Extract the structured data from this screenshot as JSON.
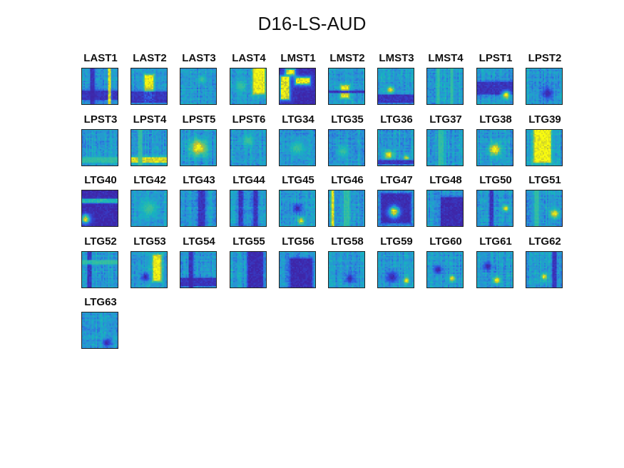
{
  "figure": {
    "title": "D16-LS-AUD"
  },
  "colormap": {
    "name": "parula",
    "stops": [
      "#3e26a8",
      "#2f52e0",
      "#2a8fd6",
      "#16b4be",
      "#4cc48a",
      "#b8bd3a",
      "#f9fb0e"
    ],
    "background_level": 0.38
  },
  "chart_data": {
    "type": "heatmap",
    "layout": "small multiples",
    "panels": [
      {
        "label": "LAST1",
        "blobs": [
          {
            "c": "dark",
            "kind": "vband",
            "x": 0.3,
            "w": 0.12
          },
          {
            "c": "dark",
            "kind": "hband",
            "y": 0.75,
            "w": 0.25
          },
          {
            "c": "bright",
            "kind": "vband",
            "x": 0.78,
            "w": 0.06
          }
        ]
      },
      {
        "label": "LAST2",
        "blobs": [
          {
            "c": "bright",
            "kind": "rect",
            "x": 0.5,
            "y": 0.55,
            "w": 0.22,
            "h": 0.7
          },
          {
            "c": "dark",
            "kind": "hband",
            "y": 0.8,
            "w": 0.3
          }
        ]
      },
      {
        "label": "LAST3",
        "blobs": [
          {
            "c": "mid",
            "kind": "spot",
            "x": 0.6,
            "y": 0.3,
            "r": 0.15
          }
        ]
      },
      {
        "label": "LAST4",
        "blobs": [
          {
            "c": "bright",
            "kind": "rect",
            "x": 0.8,
            "y": 0.35,
            "w": 0.3,
            "h": 0.7
          },
          {
            "c": "mid",
            "kind": "spot",
            "x": 0.3,
            "y": 0.5,
            "r": 0.2
          }
        ]
      },
      {
        "label": "LMST1",
        "blobs": [
          {
            "c": "dark",
            "kind": "rect",
            "x": 0.5,
            "y": 0.5,
            "w": 1,
            "h": 1
          },
          {
            "c": "bright",
            "kind": "rect",
            "x": 0.15,
            "y": 0.55,
            "w": 0.2,
            "h": 0.6
          },
          {
            "c": "bright",
            "kind": "rect",
            "x": 0.65,
            "y": 0.35,
            "w": 0.35,
            "h": 0.15
          },
          {
            "c": "bright",
            "kind": "rect",
            "x": 0.3,
            "y": 0.1,
            "w": 0.2,
            "h": 0.12
          }
        ]
      },
      {
        "label": "LMST2",
        "blobs": [
          {
            "c": "bright",
            "kind": "rect",
            "x": 0.45,
            "y": 0.55,
            "w": 0.2,
            "h": 0.12
          },
          {
            "c": "bright",
            "kind": "rect",
            "x": 0.45,
            "y": 0.75,
            "w": 0.2,
            "h": 0.1
          },
          {
            "c": "dark",
            "kind": "hband",
            "y": 0.65,
            "w": 0.08
          }
        ]
      },
      {
        "label": "LMST3",
        "blobs": [
          {
            "c": "bright",
            "kind": "spot",
            "x": 0.35,
            "y": 0.6,
            "r": 0.12
          },
          {
            "c": "dark",
            "kind": "hband",
            "y": 0.85,
            "w": 0.2
          }
        ]
      },
      {
        "label": "LMST4",
        "blobs": [
          {
            "c": "mid",
            "kind": "vband",
            "x": 0.3,
            "w": 0.08
          },
          {
            "c": "mid",
            "kind": "vband",
            "x": 0.7,
            "w": 0.08
          }
        ]
      },
      {
        "label": "LPST1",
        "blobs": [
          {
            "c": "dark",
            "kind": "hband",
            "y": 0.55,
            "w": 0.35
          },
          {
            "c": "bright",
            "kind": "spot",
            "x": 0.82,
            "y": 0.75,
            "r": 0.14
          }
        ]
      },
      {
        "label": "LPST2",
        "blobs": [
          {
            "c": "dark",
            "kind": "spot",
            "x": 0.6,
            "y": 0.7,
            "r": 0.2
          }
        ]
      },
      {
        "label": "LPST3",
        "blobs": [
          {
            "c": "mid",
            "kind": "hband",
            "y": 0.85,
            "w": 0.15
          }
        ]
      },
      {
        "label": "LPST4",
        "blobs": [
          {
            "c": "bright",
            "kind": "hband",
            "y": 0.85,
            "w": 0.15
          },
          {
            "c": "mid",
            "kind": "vband",
            "x": 0.25,
            "w": 0.1
          }
        ]
      },
      {
        "label": "LPST5",
        "blobs": [
          {
            "c": "bright",
            "kind": "spot",
            "x": 0.5,
            "y": 0.5,
            "r": 0.28
          }
        ]
      },
      {
        "label": "LPST6",
        "blobs": [
          {
            "c": "mid",
            "kind": "spot",
            "x": 0.5,
            "y": 0.3,
            "r": 0.2
          }
        ]
      },
      {
        "label": "LTG34",
        "blobs": [
          {
            "c": "mid",
            "kind": "spot",
            "x": 0.5,
            "y": 0.5,
            "r": 0.25
          }
        ]
      },
      {
        "label": "LTG35",
        "blobs": [
          {
            "c": "mid",
            "kind": "spot",
            "x": 0.4,
            "y": 0.6,
            "r": 0.2
          }
        ]
      },
      {
        "label": "LTG36",
        "blobs": [
          {
            "c": "bright",
            "kind": "spot",
            "x": 0.3,
            "y": 0.7,
            "r": 0.15
          },
          {
            "c": "bright",
            "kind": "spot",
            "x": 0.8,
            "y": 0.8,
            "r": 0.1
          },
          {
            "c": "dark",
            "kind": "hband",
            "y": 0.9,
            "w": 0.12
          }
        ]
      },
      {
        "label": "LTG37",
        "blobs": [
          {
            "c": "mid",
            "kind": "vband",
            "x": 0.4,
            "w": 0.15
          }
        ]
      },
      {
        "label": "LTG38",
        "blobs": [
          {
            "c": "bright",
            "kind": "spot",
            "x": 0.5,
            "y": 0.55,
            "r": 0.22
          }
        ]
      },
      {
        "label": "LTG39",
        "blobs": [
          {
            "c": "bright",
            "kind": "rect",
            "x": 0.45,
            "y": 0.45,
            "w": 0.45,
            "h": 0.9
          }
        ]
      },
      {
        "label": "LTG40",
        "blobs": [
          {
            "c": "dark",
            "kind": "rect",
            "x": 0.5,
            "y": 0.5,
            "w": 1,
            "h": 1
          },
          {
            "c": "mid",
            "kind": "hband",
            "y": 0.3,
            "w": 0.1
          },
          {
            "c": "bright",
            "kind": "spot",
            "x": 0.1,
            "y": 0.8,
            "r": 0.15
          }
        ]
      },
      {
        "label": "LTG42",
        "blobs": [
          {
            "c": "mid",
            "kind": "spot",
            "x": 0.5,
            "y": 0.5,
            "r": 0.3
          }
        ]
      },
      {
        "label": "LTG43",
        "blobs": [
          {
            "c": "dark",
            "kind": "vband",
            "x": 0.6,
            "w": 0.2
          }
        ]
      },
      {
        "label": "LTG44",
        "blobs": [
          {
            "c": "dark",
            "kind": "vband",
            "x": 0.3,
            "w": 0.12
          },
          {
            "c": "dark",
            "kind": "vband",
            "x": 0.7,
            "w": 0.12
          }
        ]
      },
      {
        "label": "LTG45",
        "blobs": [
          {
            "c": "bright",
            "kind": "spot",
            "x": 0.6,
            "y": 0.85,
            "r": 0.12
          },
          {
            "c": "dark",
            "kind": "spot",
            "x": 0.5,
            "y": 0.5,
            "r": 0.15
          }
        ]
      },
      {
        "label": "LTG46",
        "blobs": [
          {
            "c": "bright",
            "kind": "vband",
            "x": 0.1,
            "w": 0.08
          },
          {
            "c": "mid",
            "kind": "vband",
            "x": 0.5,
            "w": 0.15
          }
        ]
      },
      {
        "label": "LTG47",
        "blobs": [
          {
            "c": "dark",
            "kind": "rect",
            "x": 0.5,
            "y": 0.5,
            "w": 0.8,
            "h": 0.8
          },
          {
            "c": "bright",
            "kind": "spot",
            "x": 0.45,
            "y": 0.6,
            "r": 0.18
          }
        ]
      },
      {
        "label": "LTG48",
        "blobs": [
          {
            "c": "dark",
            "kind": "rect",
            "x": 0.7,
            "y": 0.6,
            "w": 0.6,
            "h": 0.8
          }
        ]
      },
      {
        "label": "LTG50",
        "blobs": [
          {
            "c": "bright",
            "kind": "spot",
            "x": 0.8,
            "y": 0.5,
            "r": 0.1
          },
          {
            "c": "dark",
            "kind": "vband",
            "x": 0.4,
            "w": 0.1
          }
        ]
      },
      {
        "label": "LTG51",
        "blobs": [
          {
            "c": "bright",
            "kind": "spot",
            "x": 0.8,
            "y": 0.65,
            "r": 0.15
          },
          {
            "c": "mid",
            "kind": "vband",
            "x": 0.3,
            "w": 0.1
          }
        ]
      },
      {
        "label": "LTG52",
        "blobs": [
          {
            "c": "dark",
            "kind": "vband",
            "x": 0.2,
            "w": 0.1
          },
          {
            "c": "mid",
            "kind": "hband",
            "y": 0.3,
            "w": 0.1
          }
        ]
      },
      {
        "label": "LTG53",
        "blobs": [
          {
            "c": "bright",
            "kind": "rect",
            "x": 0.72,
            "y": 0.45,
            "w": 0.2,
            "h": 0.7
          },
          {
            "c": "dark",
            "kind": "spot",
            "x": 0.4,
            "y": 0.7,
            "r": 0.15
          }
        ]
      },
      {
        "label": "LTG54",
        "blobs": [
          {
            "c": "dark",
            "kind": "hband",
            "y": 0.85,
            "w": 0.2
          },
          {
            "c": "dark",
            "kind": "vband",
            "x": 0.3,
            "w": 0.1
          }
        ]
      },
      {
        "label": "LTG55",
        "blobs": [
          {
            "c": "dark",
            "kind": "rect",
            "x": 0.7,
            "y": 0.5,
            "w": 0.4,
            "h": 1
          }
        ]
      },
      {
        "label": "LTG56",
        "blobs": [
          {
            "c": "dark",
            "kind": "rect",
            "x": 0.6,
            "y": 0.6,
            "w": 0.6,
            "h": 0.8
          }
        ]
      },
      {
        "label": "LTG58",
        "blobs": [
          {
            "c": "dark",
            "kind": "spot",
            "x": 0.6,
            "y": 0.75,
            "r": 0.15
          }
        ]
      },
      {
        "label": "LTG59",
        "blobs": [
          {
            "c": "dark",
            "kind": "spot",
            "x": 0.4,
            "y": 0.7,
            "r": 0.2
          },
          {
            "c": "bright",
            "kind": "spot",
            "x": 0.8,
            "y": 0.8,
            "r": 0.1
          }
        ]
      },
      {
        "label": "LTG60",
        "blobs": [
          {
            "c": "bright",
            "kind": "spot",
            "x": 0.7,
            "y": 0.75,
            "r": 0.1
          },
          {
            "c": "dark",
            "kind": "spot",
            "x": 0.3,
            "y": 0.5,
            "r": 0.15
          }
        ]
      },
      {
        "label": "LTG61",
        "blobs": [
          {
            "c": "bright",
            "kind": "spot",
            "x": 0.55,
            "y": 0.8,
            "r": 0.12
          },
          {
            "c": "dark",
            "kind": "spot",
            "x": 0.3,
            "y": 0.4,
            "r": 0.15
          }
        ]
      },
      {
        "label": "LTG62",
        "blobs": [
          {
            "c": "bright",
            "kind": "spot",
            "x": 0.5,
            "y": 0.7,
            "r": 0.1
          },
          {
            "c": "dark",
            "kind": "vband",
            "x": 0.8,
            "w": 0.1
          }
        ]
      },
      {
        "label": "LTG63",
        "blobs": [
          {
            "c": "dark",
            "kind": "spot",
            "x": 0.7,
            "y": 0.85,
            "r": 0.15
          }
        ]
      }
    ]
  }
}
